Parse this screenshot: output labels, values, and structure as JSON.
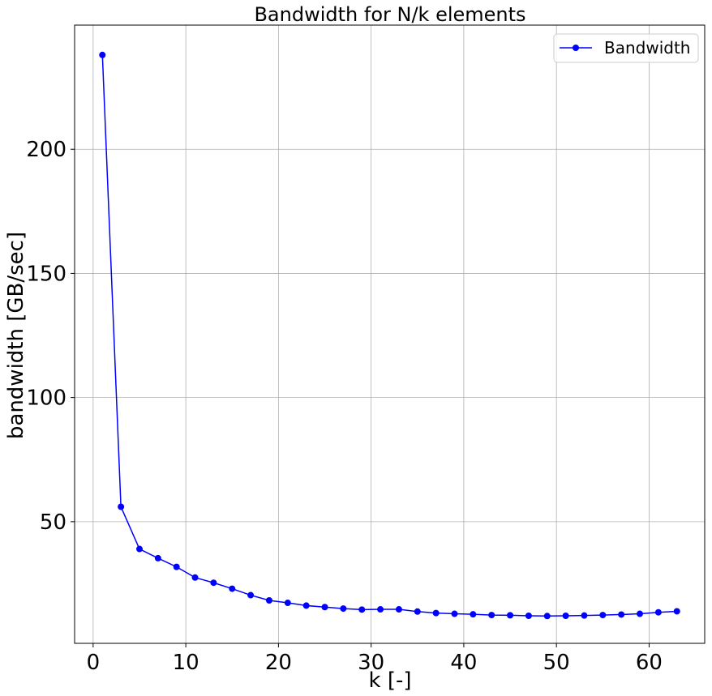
{
  "chart_data": {
    "type": "line",
    "title": "Bandwidth for N/k elements",
    "xlabel": "k [-]",
    "ylabel": "bandwidth [GB/sec]",
    "xlim": [
      -2,
      66
    ],
    "ylim": [
      1,
      250
    ],
    "xticks": [
      0,
      10,
      20,
      30,
      40,
      50,
      60
    ],
    "yticks": [
      50,
      100,
      150,
      200
    ],
    "xtick_labels": [
      "0",
      "10",
      "20",
      "30",
      "40",
      "50",
      "60"
    ],
    "ytick_labels": [
      "50",
      "100",
      "150",
      "200"
    ],
    "grid": true,
    "legend_position": "top-right",
    "series": [
      {
        "name": "Bandwidth",
        "color": "#0000ff",
        "marker": "circle",
        "x": [
          1,
          3,
          5,
          7,
          9,
          11,
          13,
          15,
          17,
          19,
          21,
          23,
          25,
          27,
          29,
          31,
          33,
          35,
          37,
          39,
          41,
          43,
          45,
          47,
          49,
          51,
          53,
          55,
          57,
          59,
          61,
          63
        ],
        "y": [
          238,
          56,
          39,
          35.3,
          31.8,
          27.5,
          25.4,
          23,
          20.4,
          18.3,
          17.3,
          16.2,
          15.6,
          15,
          14.6,
          14.7,
          14.7,
          13.8,
          13.2,
          12.9,
          12.7,
          12.4,
          12.3,
          12.1,
          12,
          12.1,
          12.2,
          12.4,
          12.6,
          12.9,
          13.5,
          13.9
        ]
      }
    ]
  }
}
